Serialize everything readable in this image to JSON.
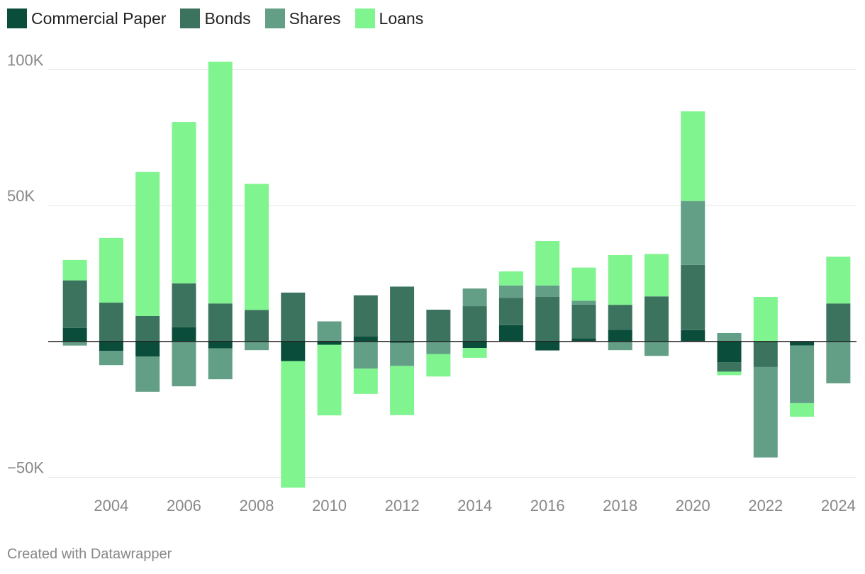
{
  "chart_data": {
    "type": "bar",
    "stacked": true,
    "title": "",
    "xlabel": "",
    "ylabel": "",
    "ylim": [
      -53500,
      103000
    ],
    "yticks": [
      {
        "value": 100000,
        "label": "100K"
      },
      {
        "value": 50000,
        "label": "50K"
      },
      {
        "value": -50000,
        "label": "−50K"
      }
    ],
    "xticks": [
      2004,
      2006,
      2008,
      2010,
      2012,
      2014,
      2016,
      2018,
      2020,
      2022,
      2024
    ],
    "xlim": [
      2002.5,
      2024.5
    ],
    "legend_position": "top-left",
    "grid": true,
    "categories": [
      2003,
      2004,
      2005,
      2006,
      2007,
      2008,
      2009,
      2010,
      2011,
      2012,
      2013,
      2014,
      2015,
      2016,
      2017,
      2018,
      2019,
      2020,
      2021,
      2022,
      2023,
      2024
    ],
    "series": [
      {
        "name": "Commercial Paper",
        "color": "#0b4d3b",
        "values": [
          5000,
          -3500,
          -5500,
          5200,
          -2500,
          0,
          -7200,
          -1200,
          1800,
          -500,
          0,
          -2400,
          6000,
          -3300,
          1200,
          4300,
          0,
          4200,
          -7600,
          0,
          -1500,
          0
        ]
      },
      {
        "name": "Bonds",
        "color": "#3b735e",
        "values": [
          17500,
          14300,
          9400,
          16200,
          14000,
          11600,
          18000,
          0,
          15200,
          20200,
          11700,
          13000,
          10100,
          16400,
          12400,
          9200,
          16600,
          24000,
          -3500,
          -9400,
          0,
          14000
        ]
      },
      {
        "name": "Shares",
        "color": "#639e87",
        "values": [
          -1500,
          -5200,
          -13000,
          -16500,
          -11400,
          -3200,
          0,
          7400,
          -10000,
          -8500,
          -4600,
          6500,
          4500,
          4200,
          1400,
          -3200,
          -5300,
          23500,
          3100,
          -33300,
          -21200,
          -15400
        ]
      },
      {
        "name": "Loans",
        "color": "#80f48f",
        "values": [
          7500,
          23800,
          53000,
          59400,
          89000,
          46400,
          -46600,
          -26000,
          -9300,
          -18100,
          -8300,
          -3600,
          5200,
          16400,
          12200,
          18300,
          15600,
          33000,
          -1300,
          16400,
          -5000,
          17200
        ]
      }
    ]
  },
  "footer": {
    "credit": "Created with Datawrapper"
  }
}
